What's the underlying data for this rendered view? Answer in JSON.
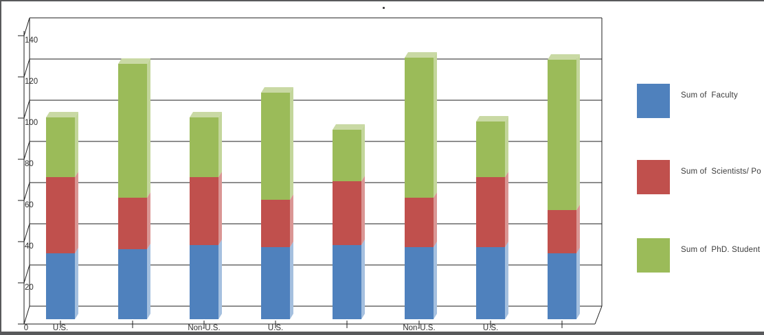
{
  "window": {
    "background": "#ffffff",
    "border_color": "#58595b",
    "title_text": "."
  },
  "legend": {
    "position": "right",
    "items": [
      {
        "label": "Sum of  Faculty",
        "color": "#4F81BD"
      },
      {
        "label": "Sum of  Scientists/ Po",
        "color": "#C0504D"
      },
      {
        "label": "Sum of  PhD. Student",
        "color": "#9BBB59"
      }
    ]
  },
  "chart_data": {
    "type": "bar",
    "variant": "3d-stacked-column",
    "title": ".",
    "xlabel": "",
    "ylabel": "",
    "grid": true,
    "legend_position": "right",
    "ylim": [
      0,
      140
    ],
    "ytick_step": 20,
    "ytick_labels": [
      "0",
      "20",
      "40",
      "60",
      "80",
      "100",
      "120",
      "140"
    ],
    "origin_label": "0",
    "categories": [
      "U.S.",
      "",
      "Non-U.S.",
      "U.S.",
      "",
      "Non-U.S.",
      "U.S.",
      ""
    ],
    "series": [
      {
        "name": "Sum of  Faculty",
        "color": "#4F81BD",
        "side_color": "#A5C0DF",
        "values": [
          32,
          34,
          36,
          35,
          36,
          35,
          35,
          32
        ]
      },
      {
        "name": "Sum of  Scientists/ Po",
        "color": "#C0504D",
        "side_color": "#DA9694",
        "values": [
          37,
          25,
          33,
          23,
          31,
          24,
          34,
          21
        ]
      },
      {
        "name": "Sum of  PhD. Student",
        "color": "#9BBB59",
        "side_color": "#C3D69B",
        "top_color": "#C9D9A4",
        "values": [
          29,
          65,
          29,
          52,
          25,
          68,
          27,
          73
        ]
      }
    ],
    "totals": [
      98,
      124,
      98,
      110,
      92,
      127,
      96,
      126
    ]
  }
}
